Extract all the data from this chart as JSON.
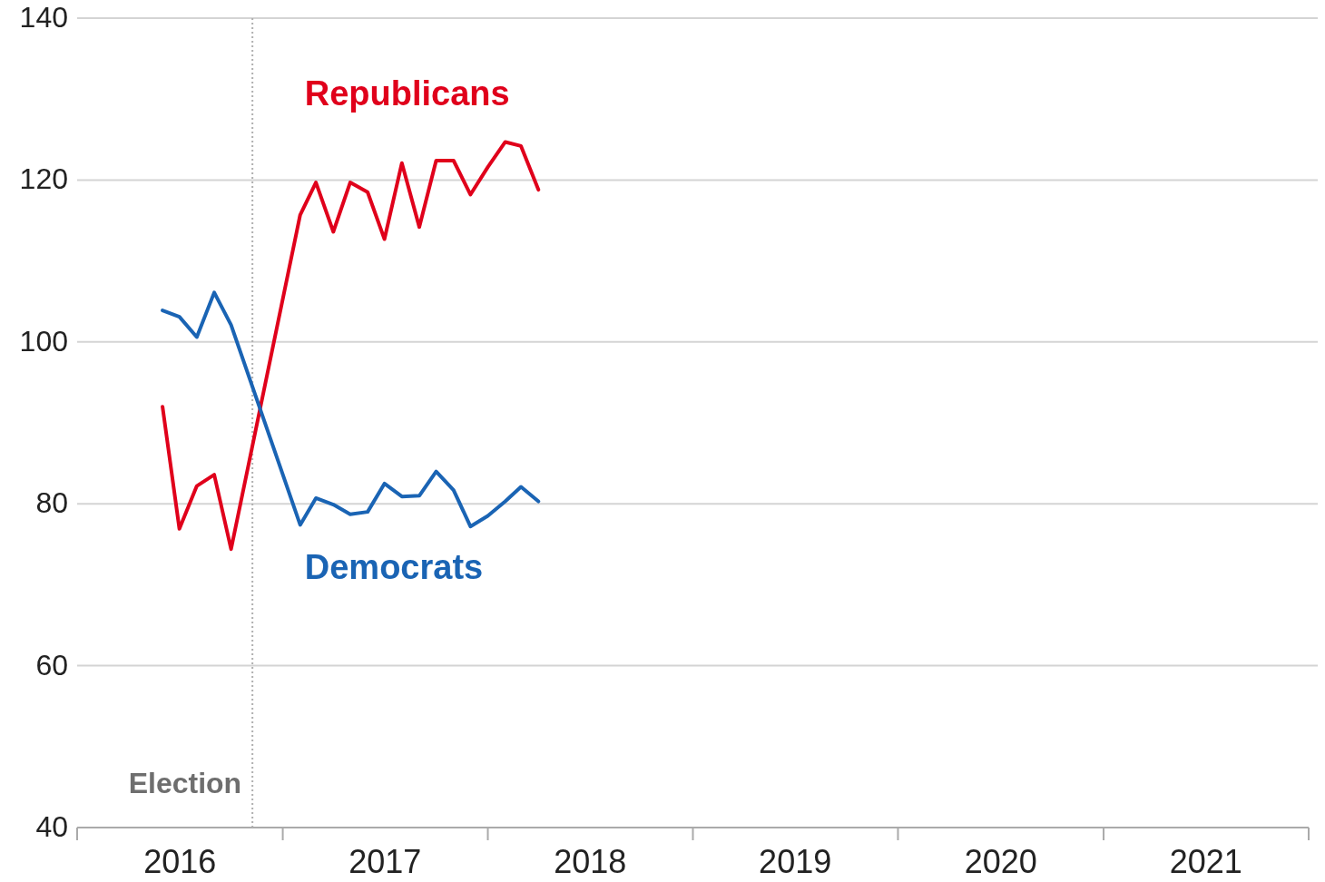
{
  "chart_data": {
    "type": "line",
    "x": [
      "2016-06",
      "2016-07",
      "2016-08",
      "2016-09",
      "2016-10",
      "2017-02",
      "2017-03",
      "2017-04",
      "2017-05",
      "2017-06",
      "2017-07",
      "2017-08",
      "2017-09",
      "2017-10",
      "2017-11",
      "2017-12",
      "2018-01",
      "2018-02",
      "2018-03",
      "2018-04"
    ],
    "series": [
      {
        "name": "Republicans",
        "color": "#e0001b",
        "values": [
          92.0,
          76.9,
          82.2,
          83.6,
          74.4,
          115.7,
          119.7,
          113.6,
          119.7,
          118.5,
          112.7,
          122.1,
          114.2,
          122.4,
          122.4,
          118.2,
          121.6,
          124.7,
          124.2,
          118.8
        ]
      },
      {
        "name": "Democrats",
        "color": "#1a64b4",
        "values": [
          103.9,
          103.1,
          100.6,
          106.1,
          102.1,
          77.4,
          80.7,
          79.9,
          78.7,
          79.0,
          82.5,
          80.9,
          81.0,
          84.0,
          81.7,
          77.2,
          78.5,
          80.3,
          82.1,
          80.3
        ]
      }
    ],
    "xlim": [
      "2016-01",
      "2022-01"
    ],
    "xticks": [
      {
        "value": "2016-01",
        "label": null
      },
      {
        "value": "2016-07-02",
        "label": "2016"
      },
      {
        "value": "2017-01",
        "label": null
      },
      {
        "value": "2017-07-02",
        "label": "2017"
      },
      {
        "value": "2018-01",
        "label": null
      },
      {
        "value": "2018-07-02",
        "label": "2018"
      },
      {
        "value": "2019-01",
        "label": null
      },
      {
        "value": "2019-07-02",
        "label": "2019"
      },
      {
        "value": "2020-01",
        "label": null
      },
      {
        "value": "2020-07-02",
        "label": "2020"
      },
      {
        "value": "2021-01",
        "label": null
      },
      {
        "value": "2021-07-02",
        "label": "2021"
      },
      {
        "value": "2022-01",
        "label": null
      }
    ],
    "ylim": [
      40,
      140
    ],
    "yticks": [
      40,
      60,
      80,
      100,
      120,
      140
    ],
    "grid": "y",
    "marker": "none",
    "line_style": "solid",
    "ref_lines": [
      {
        "axis": "x",
        "value": "2016-11-08",
        "label": "Election",
        "color": "#b0b0b0",
        "line_style": "dotted"
      }
    ]
  }
}
